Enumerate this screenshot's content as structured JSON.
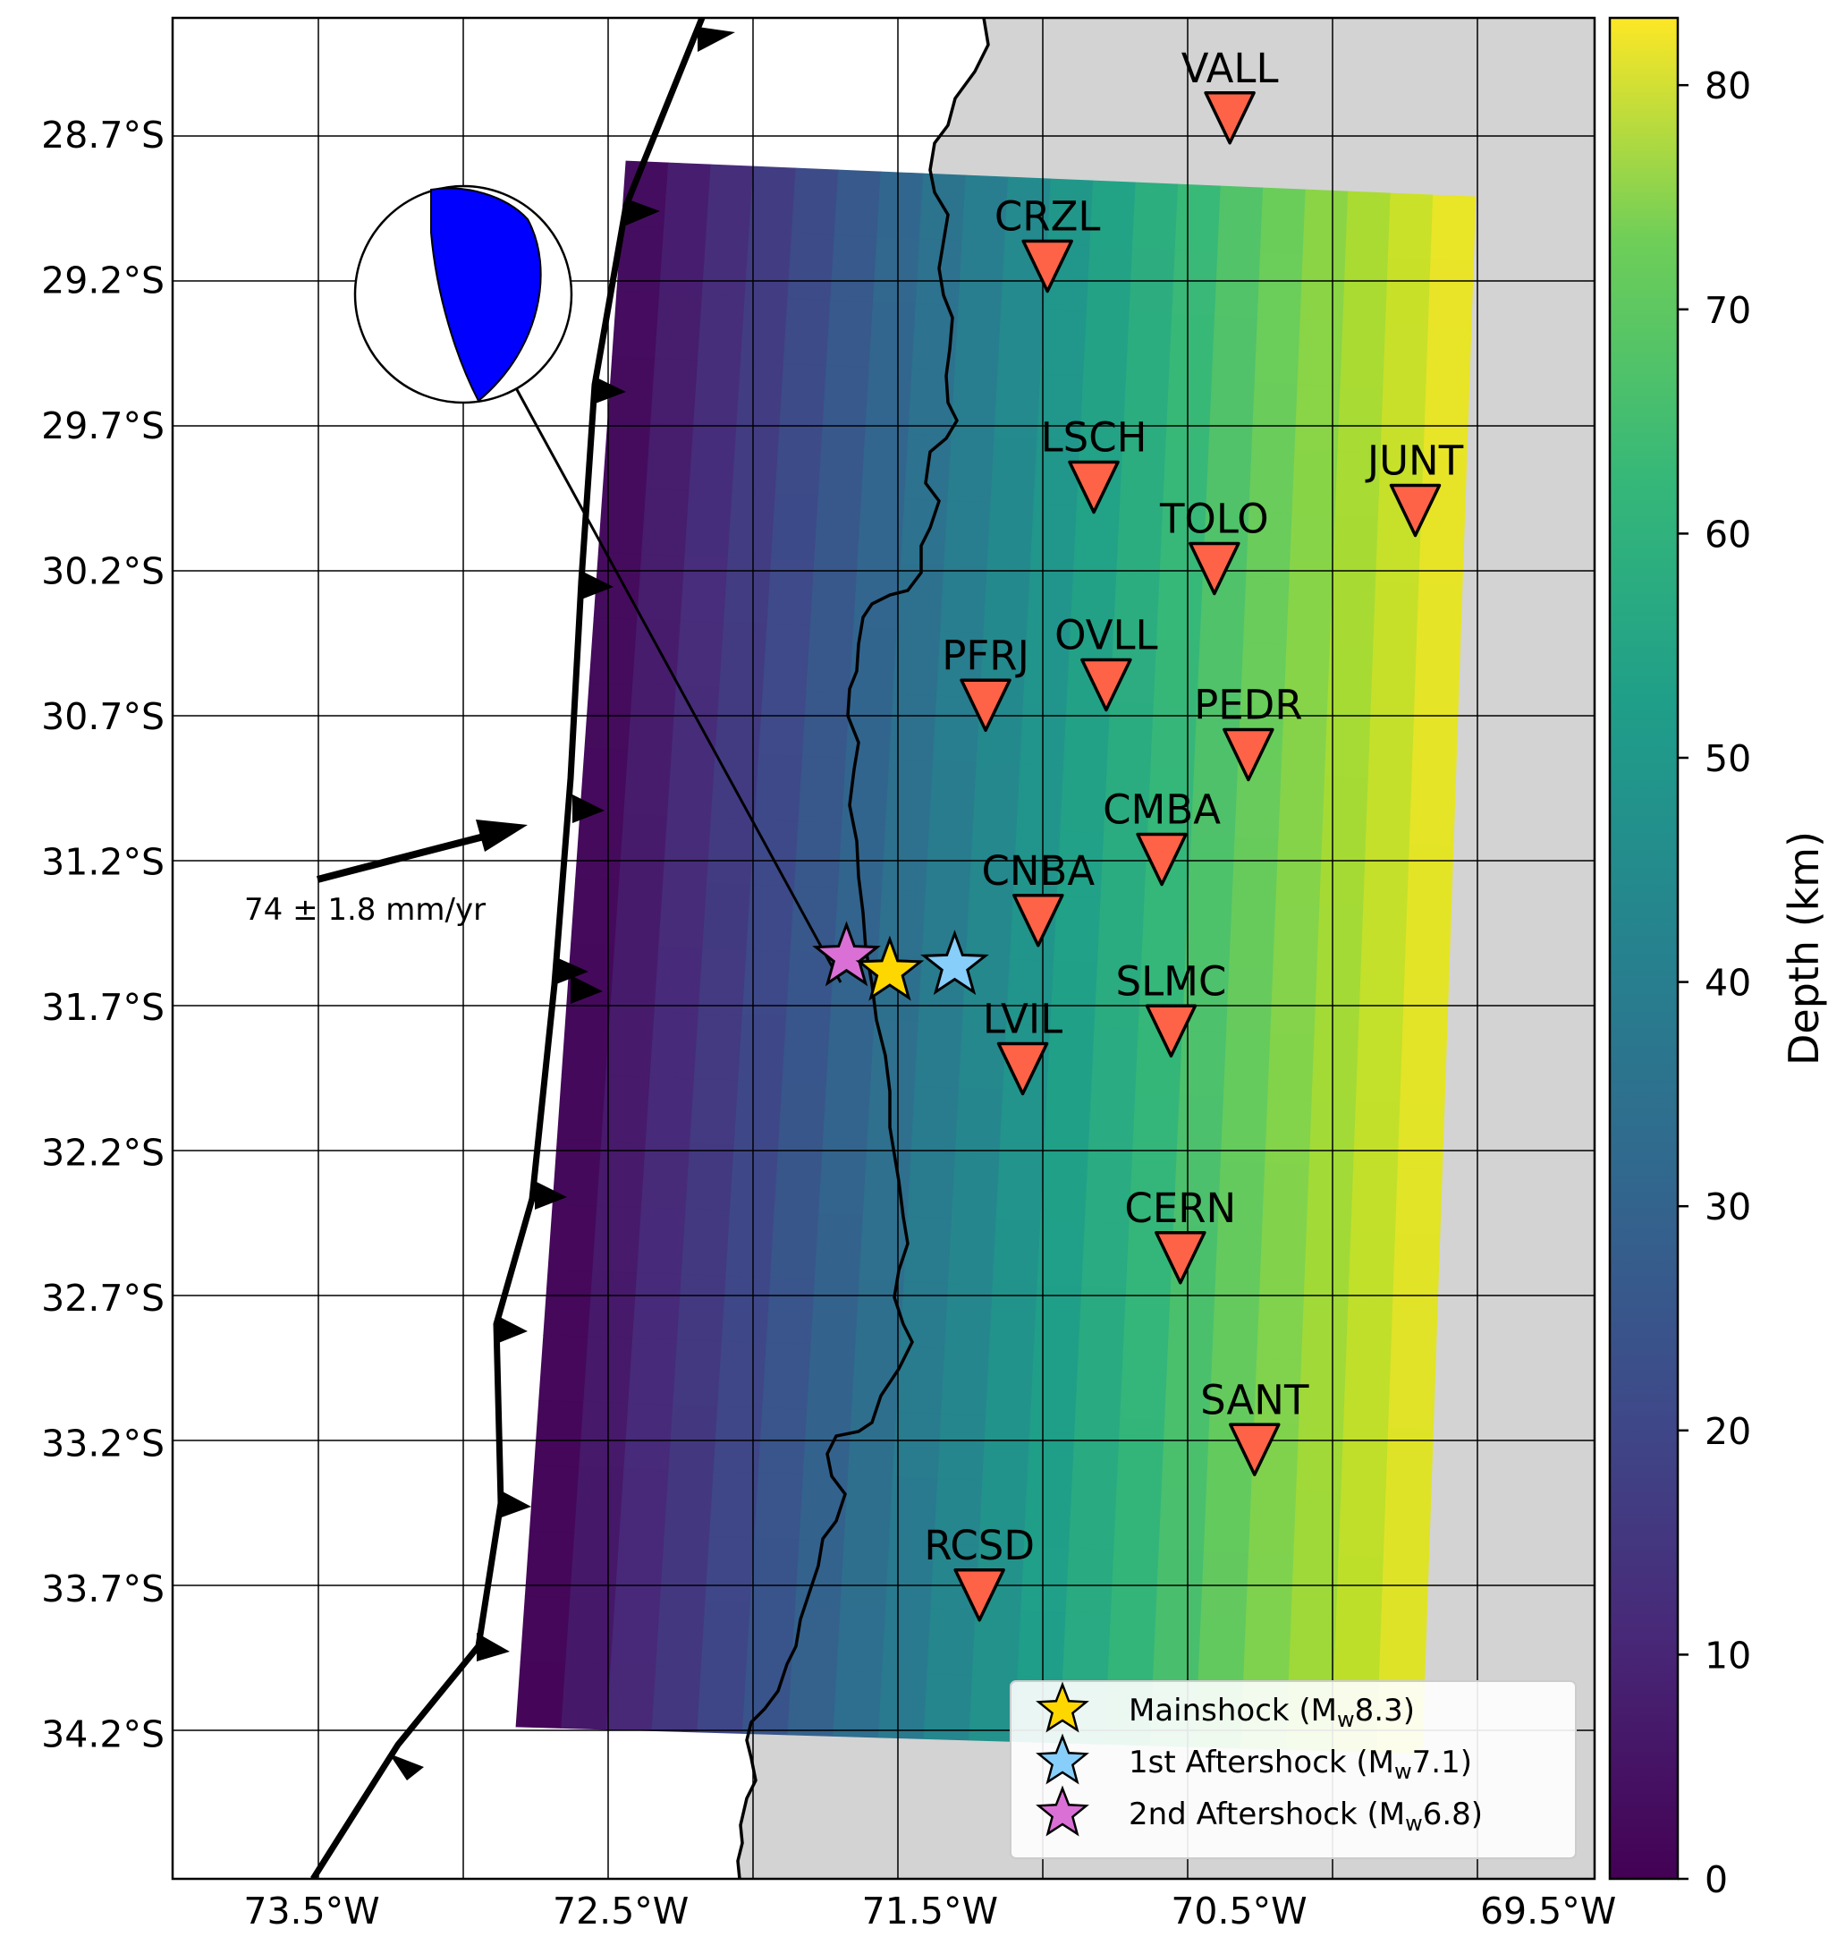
{
  "map": {
    "x_ticks": [
      "73.5°W",
      "72.5°W",
      "71.5°W",
      "70.5°W",
      "69.5°W"
    ],
    "y_ticks": [
      "28.7°S",
      "29.2°S",
      "29.7°S",
      "30.2°S",
      "30.7°S",
      "31.2°S",
      "31.7°S",
      "32.2°S",
      "32.7°S",
      "33.2°S",
      "33.7°S",
      "34.2°S"
    ],
    "lon_range": [
      -73.95,
      -69.35
    ],
    "lat_range": [
      -34.7,
      -28.3
    ],
    "colors": {
      "land": "#d3d3d3",
      "ocean": "#ffffff",
      "station": "#ff6347",
      "trench": "#000000"
    }
  },
  "stations": [
    {
      "name": "VALL",
      "lon": -70.53,
      "lat": -28.65
    },
    {
      "name": "CRZL",
      "lon": -71.12,
      "lat": -29.16
    },
    {
      "name": "LSCH",
      "lon": -70.97,
      "lat": -29.92
    },
    {
      "name": "JUNT",
      "lon": -69.93,
      "lat": -30.0
    },
    {
      "name": "TOLO",
      "lon": -70.58,
      "lat": -30.2
    },
    {
      "name": "OVLL",
      "lon": -70.93,
      "lat": -30.6
    },
    {
      "name": "PFRJ",
      "lon": -71.32,
      "lat": -30.67
    },
    {
      "name": "PEDR",
      "lon": -70.47,
      "lat": -30.84
    },
    {
      "name": "CMBA",
      "lon": -70.75,
      "lat": -31.2
    },
    {
      "name": "CNBA",
      "lon": -71.15,
      "lat": -31.41
    },
    {
      "name": "SLMC",
      "lon": -70.72,
      "lat": -31.79
    },
    {
      "name": "LVIL",
      "lon": -71.2,
      "lat": -31.92
    },
    {
      "name": "CERN",
      "lon": -70.69,
      "lat": -32.57
    },
    {
      "name": "SANT",
      "lon": -70.45,
      "lat": -33.23
    },
    {
      "name": "RCSD",
      "lon": -71.34,
      "lat": -33.73
    }
  ],
  "events": [
    {
      "name": "Mainshock",
      "label": "Mainshock (M",
      "sub": "w",
      "mag": "8.3)",
      "lon": -71.63,
      "lat": -31.58,
      "color": "#ffd700"
    },
    {
      "name": "1st Aftershock",
      "label": "1st Aftershock (M",
      "sub": "w",
      "mag": "7.1)",
      "lon": -71.42,
      "lat": -31.56,
      "color": "#87cefa"
    },
    {
      "name": "2nd Aftershock",
      "label": "2nd Aftershock (M",
      "sub": "w",
      "mag": "6.8)",
      "lon": -71.77,
      "lat": -31.53,
      "color": "#da70d6"
    }
  ],
  "plate_motion": {
    "label": "74 ± 1.8 mm/yr"
  },
  "colorbar": {
    "label": "Depth  (km)",
    "ticks": [
      "0",
      "10",
      "20",
      "30",
      "40",
      "50",
      "60",
      "70",
      "80"
    ],
    "range": [
      0,
      83
    ]
  }
}
